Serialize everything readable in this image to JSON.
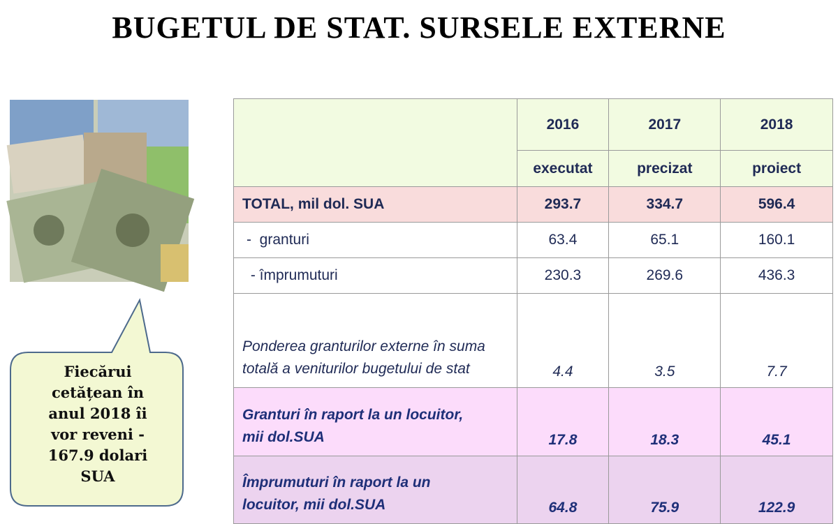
{
  "header": {
    "title": "BUGETUL DE STAT. SURSELE EXTERNE"
  },
  "callout": {
    "lines": [
      "Fiecărui",
      "cetățean în",
      "anul 2018 îi",
      "vor reveni  -",
      "167.9 dolari",
      "SUA"
    ]
  },
  "table": {
    "years": [
      "2016",
      "2017",
      "2018"
    ],
    "statuses": [
      "executat",
      "precizat",
      "proiect"
    ],
    "rows": [
      [
        "TOTAL, mil dol. SUA",
        "293.7",
        "334.7",
        "596.4"
      ],
      [
        "-  granturi",
        "63.4",
        "65.1",
        "160.1"
      ],
      [
        " - împrumuturi",
        "230.3",
        "269.6",
        "436.3"
      ],
      [
        "Ponderea granturilor externe în suma totală a veniturilor bugetului de stat",
        "4.4",
        "3.5",
        "7.7"
      ],
      [
        "Granturi în raport la un locuitor, mii dol.SUA",
        "17.8",
        "18.3",
        "45.1"
      ],
      [
        "Împrumuturi în raport la un locuitor, mii dol.SUA",
        "64.8",
        "75.9",
        "122.9"
      ]
    ]
  }
}
